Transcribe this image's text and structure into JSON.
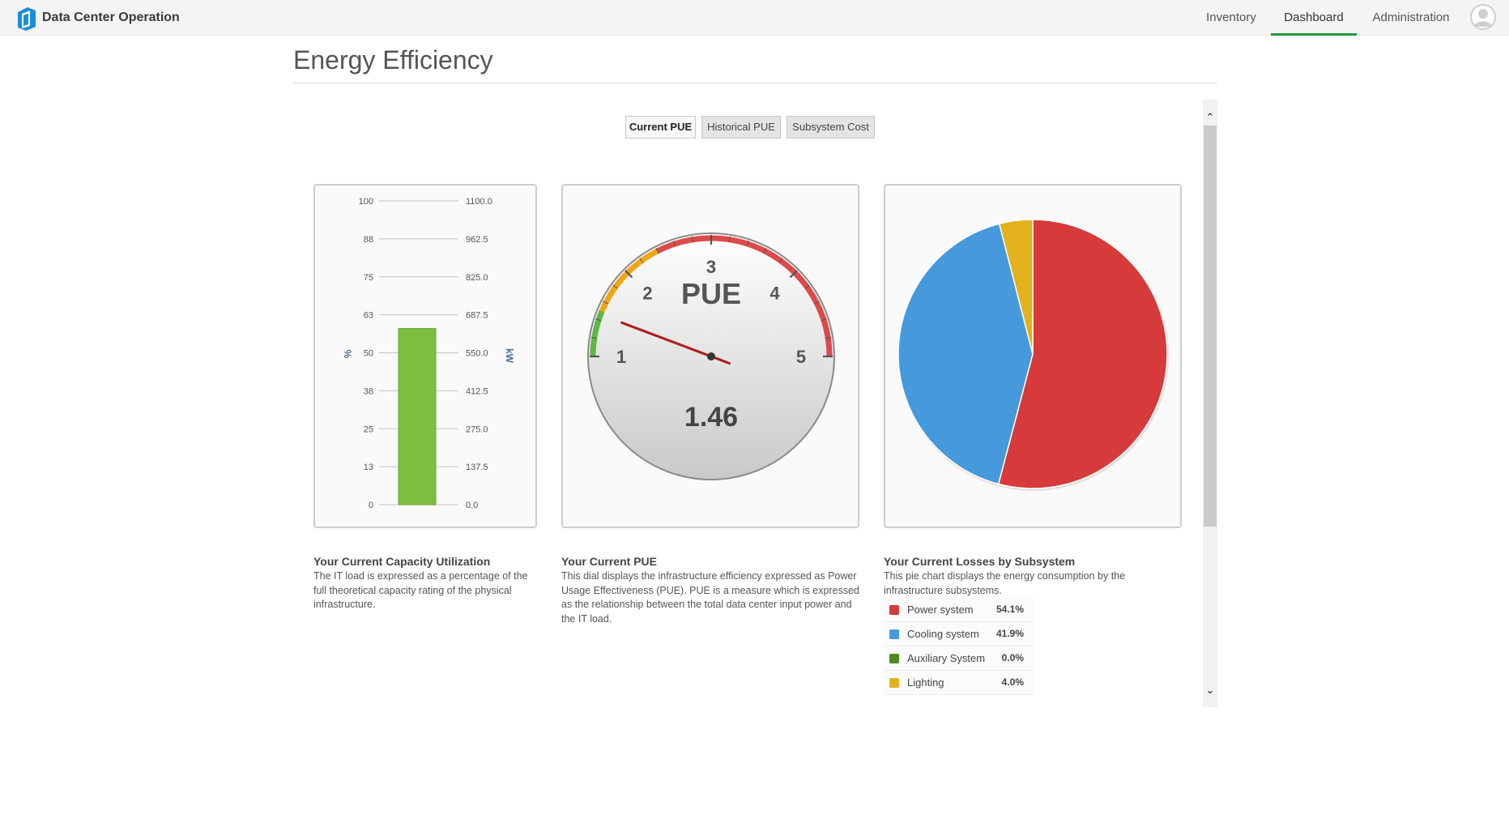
{
  "app": {
    "title": "Data Center Operation"
  },
  "nav": {
    "items": [
      "Inventory",
      "Dashboard",
      "Administration"
    ],
    "active": "Dashboard"
  },
  "page": {
    "title": "Energy Efficiency"
  },
  "tabs": [
    {
      "label": "Current PUE",
      "active": true
    },
    {
      "label": "Historical PUE",
      "active": false
    },
    {
      "label": "Subsystem Cost",
      "active": false
    }
  ],
  "scroll": {
    "up_glyph": "⌃",
    "down_glyph": "⌄"
  },
  "capacity": {
    "title": "Your Current Capacity Utilization",
    "text": "The IT load is expressed as a percentage of the full theoretical capacity rating of the physical infrastructure.",
    "left_unit": "%",
    "right_unit": "kW",
    "left_ticks": [
      "100",
      "88",
      "75",
      "63",
      "50",
      "38",
      "25",
      "13",
      "0"
    ],
    "right_ticks": [
      "1100.0",
      "962.5",
      "825.0",
      "687.5",
      "550.0",
      "412.5",
      "275.0",
      "137.5",
      "0.0"
    ],
    "value_percent": 58,
    "bar_color": "#7dbd3f"
  },
  "pue": {
    "title": "Your Current PUE",
    "text": "This dial displays the infrastructure efficiency expressed as Power Usage Effectiveness (PUE). PUE is a measure which is expressed as the relationship between the total data center input power and the IT load.",
    "dial_label": "PUE",
    "value": "1.46",
    "numeric_value": 1.46,
    "min": 1,
    "max": 5,
    "scale": [
      "1",
      "2",
      "3",
      "4",
      "5"
    ],
    "bands": [
      {
        "from": 1,
        "to": 1.5,
        "color": "#5cb840"
      },
      {
        "from": 1.5,
        "to": 2.4,
        "color": "#f2a516"
      },
      {
        "from": 2.4,
        "to": 5,
        "color": "#dd4a4a"
      }
    ],
    "needle_color": "#b01c1c"
  },
  "losses": {
    "title": "Your Current Losses by Subsystem",
    "text": "This pie chart displays the energy consumption by the infrastructure subsystems.",
    "legend": [
      {
        "name": "Power system",
        "value": "54.1%",
        "color": "#d63a3a"
      },
      {
        "name": "Cooling system",
        "value": "41.9%",
        "color": "#4699db"
      },
      {
        "name": "Auxiliary System",
        "value": "0.0%",
        "color": "#4d8a22"
      },
      {
        "name": "Lighting",
        "value": "4.0%",
        "color": "#e3b11e"
      }
    ]
  },
  "chart_data": [
    {
      "type": "bar",
      "categories": [
        ""
      ],
      "values": [
        58
      ],
      "ylim": [
        0,
        100
      ],
      "ylabel": "%",
      "y2label": "kW",
      "y2lim": [
        0,
        1100
      ]
    },
    {
      "type": "gauge",
      "value": 1.46,
      "range": [
        1,
        5
      ],
      "label": "PUE"
    },
    {
      "type": "pie",
      "categories": [
        "Power system",
        "Cooling system",
        "Auxiliary System",
        "Lighting"
      ],
      "values": [
        54.1,
        41.9,
        0.0,
        4.0
      ]
    }
  ]
}
